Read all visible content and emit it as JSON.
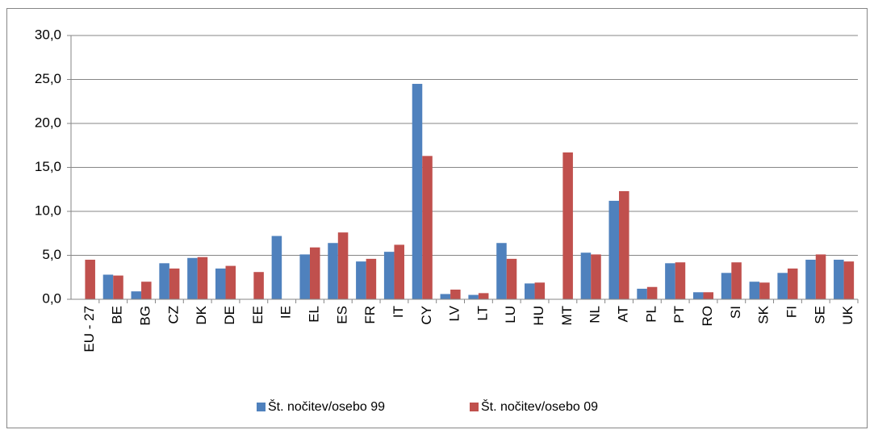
{
  "chart_data": {
    "type": "bar",
    "categories": [
      "EU - 27",
      "BE",
      "BG",
      "CZ",
      "DK",
      "DE",
      "EE",
      "IE",
      "EL",
      "ES",
      "FR",
      "IT",
      "CY",
      "LV",
      "LT",
      "LU",
      "HU",
      "MT",
      "NL",
      "AT",
      "PL",
      "PT",
      "RO",
      "SI",
      "SK",
      "FI",
      "SE",
      "UK"
    ],
    "series": [
      {
        "name": "Št. nočitev/osebo 99",
        "color": "#4f81bd",
        "values": [
          null,
          2.8,
          0.9,
          4.1,
          4.7,
          3.5,
          null,
          7.2,
          5.1,
          6.4,
          4.3,
          5.4,
          24.5,
          0.6,
          0.5,
          6.4,
          1.8,
          null,
          5.3,
          11.2,
          1.2,
          4.1,
          0.8,
          3.0,
          2.0,
          3.0,
          4.5,
          4.5
        ]
      },
      {
        "name": "Št. nočitev/osebo 09",
        "color": "#c0504d",
        "values": [
          4.5,
          2.7,
          2.0,
          3.5,
          4.8,
          3.8,
          3.1,
          null,
          5.9,
          7.6,
          4.6,
          6.2,
          16.3,
          1.1,
          0.7,
          4.6,
          1.9,
          16.7,
          5.1,
          12.3,
          1.4,
          4.2,
          0.8,
          4.2,
          1.9,
          3.5,
          5.1,
          4.3
        ]
      }
    ],
    "ylim": [
      0,
      30
    ],
    "yticks": [
      {
        "value": 0,
        "label": "0,0"
      },
      {
        "value": 5,
        "label": "5,0"
      },
      {
        "value": 10,
        "label": "10,0"
      },
      {
        "value": 15,
        "label": "15,0"
      },
      {
        "value": 20,
        "label": "20,0"
      },
      {
        "value": 25,
        "label": "25,0"
      },
      {
        "value": 30,
        "label": "30,0"
      }
    ],
    "grid": true,
    "legend": "bottom"
  }
}
